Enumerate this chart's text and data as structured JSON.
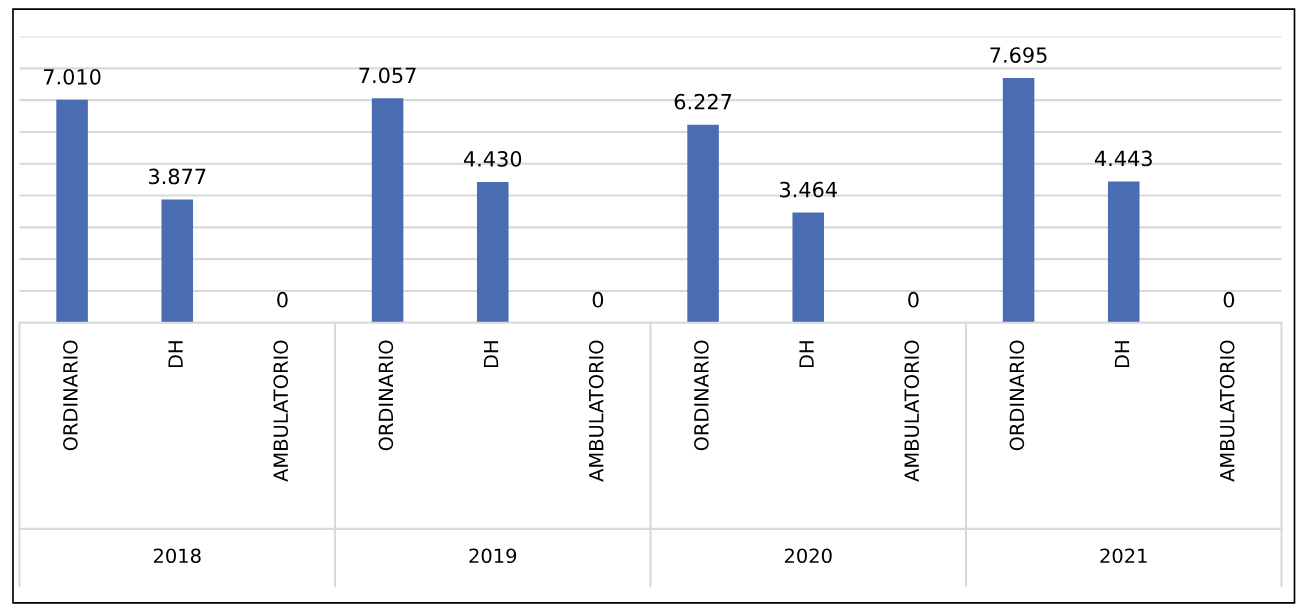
{
  "chart_data": {
    "type": "bar",
    "categories": [
      "ORDINARIO",
      "DH",
      "AMBULATORIO",
      "ORDINARIO",
      "DH",
      "AMBULATORIO",
      "ORDINARIO",
      "DH",
      "AMBULATORIO",
      "ORDINARIO",
      "DH",
      "AMBULATORIO"
    ],
    "values": [
      7010,
      3877,
      0,
      7057,
      4430,
      0,
      6227,
      3464,
      0,
      7695,
      4443,
      0
    ],
    "value_labels": [
      "7.010",
      "3.877",
      "0",
      "7.057",
      "4.430",
      "0",
      "6.227",
      "3.464",
      "0",
      "7.695",
      "4.443",
      "0"
    ],
    "color": "#4a6cb3",
    "ylim": [
      0,
      9000
    ],
    "yticks": [
      {
        "value": 0,
        "label": null
      },
      {
        "value": 1000,
        "label": null
      },
      {
        "value": 2000,
        "label": null
      },
      {
        "value": 3000,
        "label": null
      },
      {
        "value": 4000,
        "label": null
      },
      {
        "value": 5000,
        "label": null
      },
      {
        "value": 6000,
        "label": null
      },
      {
        "value": 7000,
        "label": null
      },
      {
        "value": 8000,
        "label": null
      },
      {
        "value": 9000,
        "label": null
      }
    ],
    "grid": "y",
    "tick_labels": "x",
    "annotations": [
      "2018",
      "2019",
      "2020",
      "2021"
    ]
  }
}
